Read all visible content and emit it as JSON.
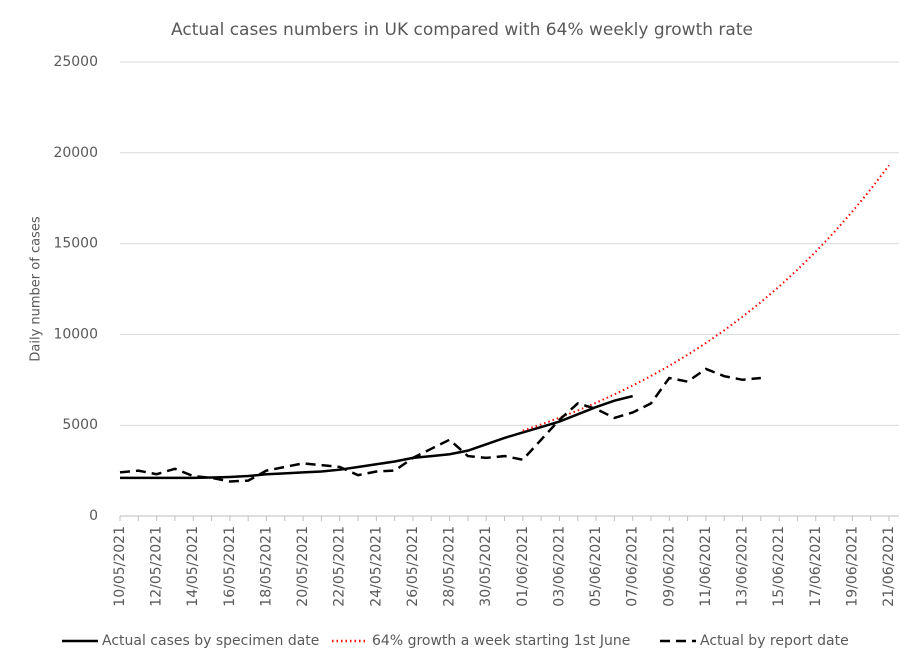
{
  "chart_data": {
    "type": "line",
    "title": "Actual cases numbers in UK compared with 64% weekly growth rate",
    "y_label": "Daily number of cases",
    "categories": [
      "10/05/2021",
      null,
      "12/05/2021",
      null,
      "14/05/2021",
      null,
      "16/05/2021",
      null,
      "18/05/2021",
      null,
      "20/05/2021",
      null,
      "22/05/2021",
      null,
      "24/05/2021",
      null,
      "26/05/2021",
      null,
      "28/05/2021",
      null,
      "30/05/2021",
      null,
      "01/06/2021",
      null,
      "03/06/2021",
      null,
      "05/06/2021",
      null,
      "07/06/2021",
      null,
      "09/06/2021",
      null,
      "11/06/2021",
      null,
      "13/06/2021",
      null,
      "15/06/2021",
      null,
      "17/06/2021",
      null,
      "19/06/2021",
      null,
      "21/06/2021"
    ],
    "series": [
      {
        "name": "Actual cases by specimen date",
        "color": "#000000",
        "style": "solid",
        "values": [
          2100,
          2100,
          2100,
          2100,
          2100,
          2120,
          2150,
          2200,
          2300,
          2350,
          2400,
          2450,
          2550,
          2700,
          2850,
          3000,
          3200,
          3300,
          3400,
          3600,
          3950,
          4300,
          4600,
          4900,
          5200,
          5600,
          6000,
          6350,
          6600,
          null,
          null,
          null,
          null,
          null,
          null,
          null,
          null,
          null,
          null,
          null,
          null,
          null,
          null
        ]
      },
      {
        "name": "64% growth a week starting 1st June",
        "color": "#ff0000",
        "style": "dotted",
        "values": [
          null,
          null,
          null,
          null,
          null,
          null,
          null,
          null,
          null,
          null,
          null,
          null,
          null,
          null,
          null,
          null,
          null,
          null,
          null,
          null,
          null,
          null,
          4700,
          5044,
          5413,
          5810,
          6235,
          6691,
          7181,
          7707,
          8271,
          8877,
          9526,
          10224,
          10972,
          11775,
          12637,
          13562,
          14555,
          15621,
          16764,
          17991,
          19308
        ]
      },
      {
        "name": "Actual by report date",
        "color": "#000000",
        "style": "dashed",
        "values": [
          2400,
          2500,
          2300,
          2600,
          2200,
          2100,
          1900,
          1950,
          2500,
          2700,
          2900,
          2800,
          2700,
          2250,
          2450,
          2500,
          3200,
          3700,
          4200,
          3300,
          3200,
          3300,
          3100,
          4200,
          5300,
          6200,
          5900,
          5400,
          5700,
          6200,
          7600,
          7400,
          8100,
          7700,
          7500,
          7600,
          null,
          null,
          null,
          null,
          null,
          null,
          null
        ]
      }
    ],
    "ylim": [
      0,
      25000
    ],
    "yticks": [
      0,
      5000,
      10000,
      15000,
      20000,
      25000
    ],
    "grid": true,
    "legend": "bottom"
  }
}
